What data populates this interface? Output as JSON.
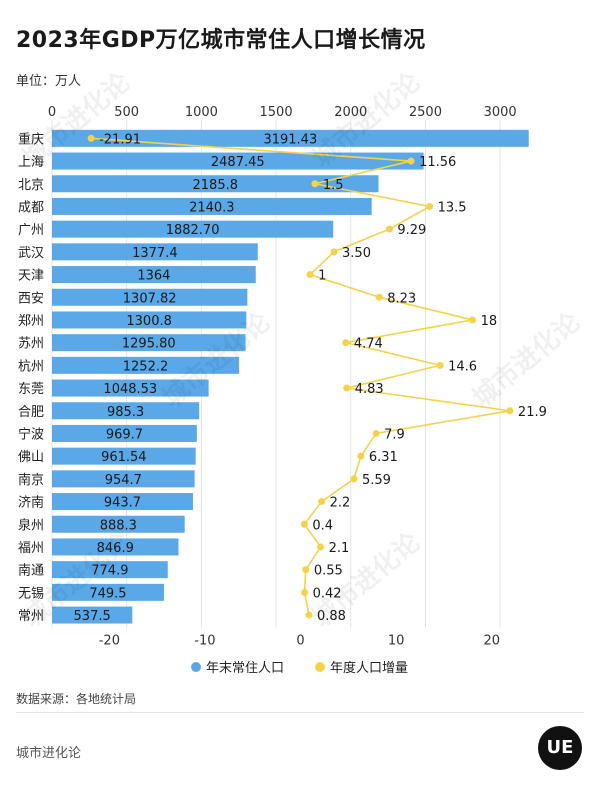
{
  "title": "2023年GDP万亿城市常住人口增长情况",
  "unit": "单位：万人",
  "source": "数据来源：各地统计局",
  "brand": "城市进化论",
  "logo_text": "UE",
  "watermark": "城市进化论",
  "colors": {
    "bar": "#5aa8e8",
    "line": "#f4d24a",
    "grid": "#e3e3e3",
    "text": "#222222"
  },
  "chart_data": {
    "type": "bar",
    "title": "2023年GDP万亿城市常住人口增长情况",
    "ylabel": "单位：万人",
    "legend_position": "bottom",
    "grid": true,
    "categories": [
      "重庆",
      "上海",
      "北京",
      "成都",
      "广州",
      "武汉",
      "天津",
      "西安",
      "郑州",
      "苏州",
      "杭州",
      "东莞",
      "合肥",
      "宁波",
      "佛山",
      "南京",
      "济南",
      "泉州",
      "福州",
      "南通",
      "无锡",
      "常州"
    ],
    "top_axis": {
      "range": [
        0,
        3200
      ],
      "ticks": [
        "0",
        "500",
        "1000",
        "1500",
        "2000",
        "2500",
        "3000"
      ]
    },
    "bottom_axis": {
      "range": [
        -26,
        24
      ],
      "ticks": [
        "-20",
        "-10",
        "0",
        "10",
        "20"
      ]
    },
    "series": [
      {
        "name": "年末常住人口",
        "type": "bar",
        "axis": "top",
        "values": [
          3191.43,
          2487.45,
          2185.8,
          2140.3,
          1882.7,
          1377.4,
          1364,
          1307.82,
          1300.8,
          1295.8,
          1252.2,
          1048.53,
          985.3,
          969.7,
          961.54,
          954.7,
          943.7,
          888.3,
          846.9,
          774.9,
          749.5,
          537.5
        ],
        "labels": [
          "3191.43",
          "2487.45",
          "2185.8",
          "2140.3",
          "1882.70",
          "1377.4",
          "1364",
          "1307.82",
          "1300.8",
          "1295.80",
          "1252.2",
          "1048.53",
          "985.3",
          "969.7",
          "961.54",
          "954.7",
          "943.7",
          "888.3",
          "846.9",
          "774.9",
          "749.5",
          "537.5"
        ]
      },
      {
        "name": "年度人口增量",
        "type": "line",
        "axis": "bottom",
        "values": [
          -21.91,
          11.56,
          1.5,
          13.5,
          9.29,
          3.5,
          1,
          8.23,
          18,
          4.74,
          14.6,
          4.83,
          21.9,
          7.9,
          6.31,
          5.59,
          2.2,
          0.4,
          2.1,
          0.55,
          0.42,
          0.88
        ],
        "labels": [
          "-21.91",
          "11.56",
          "1.5",
          "13.5",
          "9.29",
          "3.50",
          "1",
          "8.23",
          "18",
          "4.74",
          "14.6",
          "4.83",
          "21.9",
          "7.9",
          "6.31",
          "5.59",
          "2.2",
          "0.4",
          "2.1",
          "0.55",
          "0.42",
          "0.88"
        ]
      }
    ]
  }
}
